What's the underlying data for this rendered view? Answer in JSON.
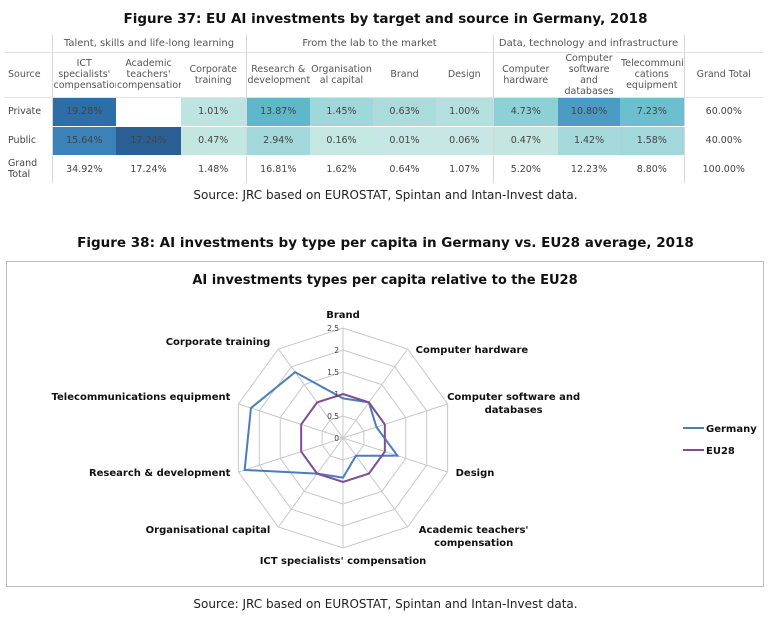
{
  "figure37": {
    "title": "Figure 37: EU AI investments by target and source in Germany, 2018",
    "source": "Source: JRC based on EUROSTAT, Spintan and Intan-Invest data.",
    "groups": [
      "Talent, skills and life-long learning",
      "From the lab to the market",
      "Data, technology and infrastructure"
    ],
    "source_header": "Source",
    "grand_total_header": "Grand Total",
    "columns": [
      "ICT specialists' compensation",
      "Academic teachers' compensation",
      "Corporate training",
      "Research & development",
      "Organisation al capital",
      "Brand",
      "Design",
      "Computer hardware",
      "Computer software and databases",
      "Telecommuni cations equipment"
    ],
    "rows": [
      {
        "label": "Private",
        "values": [
          "19.28%",
          "",
          "1.01%",
          "13.87%",
          "1.45%",
          "0.63%",
          "1.00%",
          "4.73%",
          "10.80%",
          "7.23%"
        ],
        "total": "60.00%"
      },
      {
        "label": "Public",
        "values": [
          "15.64%",
          "17.24%",
          "0.47%",
          "2.94%",
          "0.16%",
          "0.01%",
          "0.06%",
          "0.47%",
          "1.42%",
          "1.58%"
        ],
        "total": "40.00%"
      }
    ],
    "total_row": {
      "label": "Grand Total",
      "values": [
        "34.92%",
        "17.24%",
        "1.48%",
        "16.81%",
        "1.62%",
        "0.64%",
        "1.07%",
        "5.20%",
        "12.23%",
        "8.80%"
      ],
      "total": "100.00%"
    },
    "heat_colors": {
      "Private": [
        "#2e6ea8",
        "#ffffff",
        "#bde4e0",
        "#5fb8c9",
        "#9fd8db",
        "#aadcdb",
        "#b3e0df",
        "#8dd0d6",
        "#4b9bc4",
        "#6cbfcf"
      ],
      "Public": [
        "#3a82b8",
        "#2a5f96",
        "#c3e6e1",
        "#a2d8db",
        "#c4e7e2",
        "#c6e7e3",
        "#c6e7e3",
        "#c3e6e1",
        "#a5d9dc",
        "#a2d8db"
      ]
    }
  },
  "figure38": {
    "title": "Figure 38: AI investments by type per capita in Germany vs. EU28 average, 2018",
    "source": "Source: JRC based on EUROSTAT, Spintan and Intan-Invest data."
  },
  "chart_data": {
    "type": "radar",
    "title": "AI investments types per capita relative to the EU28",
    "axes": [
      "Brand",
      "Computer hardware",
      "Computer software and databases",
      "Design",
      "Academic teachers' compensation",
      "ICT specialists' compensation",
      "Organisational capital",
      "Research & development",
      "Telecommunications equipment",
      "Corporate training"
    ],
    "rlim": [
      0,
      2.5
    ],
    "ticks": [
      "0",
      "0.5",
      "1",
      "1.5",
      "2",
      "2.5"
    ],
    "grid": true,
    "legend_position": "right",
    "series": [
      {
        "name": "Germany",
        "color": "#4a7ebb",
        "values": [
          0.9,
          1.0,
          0.8,
          1.3,
          0.5,
          0.9,
          1.0,
          2.35,
          2.2,
          1.85
        ]
      },
      {
        "name": "EU28",
        "color": "#7d4f96",
        "values": [
          1.0,
          1.0,
          1.0,
          1.0,
          1.0,
          1.0,
          1.0,
          1.0,
          1.0,
          1.0
        ]
      }
    ]
  }
}
